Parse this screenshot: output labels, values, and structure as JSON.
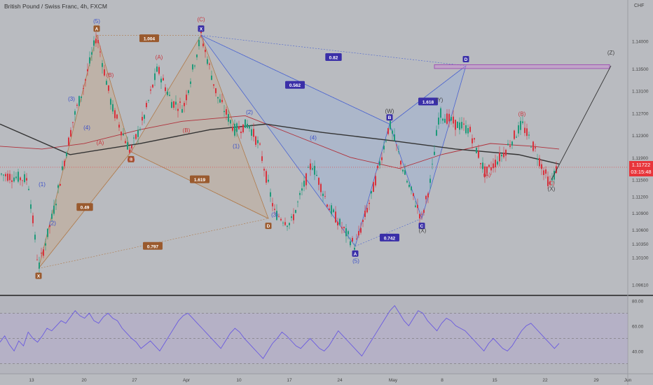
{
  "header": {
    "title": "British Pound / Swiss Franc, 4h, FXCM",
    "currency": "CHF"
  },
  "last_price": {
    "value": "1.11722",
    "countdown": "03:15:48"
  },
  "chart_data": [
    {
      "type": "candlestick",
      "title": "British Pound / Swiss Franc, 4h, FXCM",
      "ylim": [
        1.0944,
        1.1452
      ],
      "y_ticks": [
        "1.14000",
        "1.13500",
        "1.13100",
        "1.12700",
        "1.12300",
        "1.11900",
        "1.11500",
        "1.11200",
        "1.10900",
        "1.10600",
        "1.10350",
        "1.10100",
        "1.09610"
      ],
      "x_ticks": [
        "13",
        "20",
        "27",
        "Apr",
        "10",
        "17",
        "24",
        "May",
        "8",
        "15",
        "22",
        "29",
        "Jun"
      ],
      "price_path": [
        {
          "x": 0,
          "y": 1.116
        },
        {
          "x": 40,
          "y": 1.115
        },
        {
          "x": 55,
          "y": 1.099
        },
        {
          "x": 75,
          "y": 1.1085
        },
        {
          "x": 105,
          "y": 1.126
        },
        {
          "x": 120,
          "y": 1.132
        },
        {
          "x": 138,
          "y": 1.141
        },
        {
          "x": 160,
          "y": 1.128
        },
        {
          "x": 186,
          "y": 1.12
        },
        {
          "x": 205,
          "y": 1.126
        },
        {
          "x": 225,
          "y": 1.135
        },
        {
          "x": 245,
          "y": 1.129
        },
        {
          "x": 262,
          "y": 1.128
        },
        {
          "x": 287,
          "y": 1.141
        },
        {
          "x": 310,
          "y": 1.13
        },
        {
          "x": 335,
          "y": 1.124
        },
        {
          "x": 355,
          "y": 1.125
        },
        {
          "x": 370,
          "y": 1.121
        },
        {
          "x": 392,
          "y": 1.109
        },
        {
          "x": 415,
          "y": 1.107
        },
        {
          "x": 445,
          "y": 1.118
        },
        {
          "x": 470,
          "y": 1.11
        },
        {
          "x": 490,
          "y": 1.106
        },
        {
          "x": 507,
          "y": 1.103
        },
        {
          "x": 530,
          "y": 1.112
        },
        {
          "x": 556,
          "y": 1.125
        },
        {
          "x": 580,
          "y": 1.115
        },
        {
          "x": 602,
          "y": 1.108
        },
        {
          "x": 615,
          "y": 1.115
        },
        {
          "x": 627,
          "y": 1.127
        },
        {
          "x": 650,
          "y": 1.125
        },
        {
          "x": 670,
          "y": 1.124
        },
        {
          "x": 693,
          "y": 1.116
        },
        {
          "x": 720,
          "y": 1.12
        },
        {
          "x": 745,
          "y": 1.125
        },
        {
          "x": 765,
          "y": 1.12
        },
        {
          "x": 785,
          "y": 1.114
        },
        {
          "x": 795,
          "y": 1.1172
        }
      ],
      "ma_slow": [
        {
          "x": 0,
          "y": 1.125
        },
        {
          "x": 100,
          "y": 1.1195
        },
        {
          "x": 200,
          "y": 1.1215
        },
        {
          "x": 300,
          "y": 1.124
        },
        {
          "x": 380,
          "y": 1.125
        },
        {
          "x": 460,
          "y": 1.1235
        },
        {
          "x": 560,
          "y": 1.122
        },
        {
          "x": 650,
          "y": 1.1205
        },
        {
          "x": 740,
          "y": 1.1195
        },
        {
          "x": 798,
          "y": 1.1178
        }
      ],
      "ma_fast": [
        {
          "x": 0,
          "y": 1.121
        },
        {
          "x": 60,
          "y": 1.1205
        },
        {
          "x": 120,
          "y": 1.1215
        },
        {
          "x": 200,
          "y": 1.124
        },
        {
          "x": 260,
          "y": 1.1255
        },
        {
          "x": 350,
          "y": 1.1265
        },
        {
          "x": 420,
          "y": 1.123
        },
        {
          "x": 500,
          "y": 1.119
        },
        {
          "x": 570,
          "y": 1.117
        },
        {
          "x": 630,
          "y": 1.1195
        },
        {
          "x": 700,
          "y": 1.1215
        },
        {
          "x": 760,
          "y": 1.121
        },
        {
          "x": 798,
          "y": 1.1205
        }
      ],
      "harmonic_pattern_1": {
        "points": [
          {
            "label": "X",
            "x": 55,
            "y": 1.099
          },
          {
            "label": "A",
            "x": 138,
            "y": 1.141
          },
          {
            "label": "B",
            "x": 187,
            "y": 1.12
          },
          {
            "label": "C",
            "x": 287,
            "y": 1.141
          },
          {
            "label": "D",
            "x": 383,
            "y": 1.108
          }
        ],
        "ratios": [
          {
            "label": "1.004",
            "x": 213,
            "y": 1.1404
          },
          {
            "label": "0.49",
            "x": 121,
            "y": 1.11
          },
          {
            "label": "1.619",
            "x": 285,
            "y": 1.115
          },
          {
            "label": "0.797",
            "x": 218,
            "y": 1.103
          }
        ]
      },
      "harmonic_pattern_2": {
        "points": [
          {
            "label": "X",
            "x": 287,
            "y": 1.141
          },
          {
            "label": "A",
            "x": 507,
            "y": 1.103
          },
          {
            "label": "B",
            "x": 556,
            "y": 1.125
          },
          {
            "label": "C",
            "x": 602,
            "y": 1.108
          },
          {
            "label": "D",
            "x": 665,
            "y": 1.1355
          }
        ],
        "ratios": [
          {
            "label": "0.82",
            "x": 476,
            "y": 1.137
          },
          {
            "label": "0.562",
            "x": 421,
            "y": 1.132
          },
          {
            "label": "1.618",
            "x": 611,
            "y": 1.129
          },
          {
            "label": "0.742",
            "x": 556,
            "y": 1.1045
          }
        ]
      },
      "wave_labels": [
        {
          "label": "(5)",
          "x": 138,
          "y": 1.1432,
          "color": "#3a4fc8"
        },
        {
          "label": "(3)",
          "x": 102,
          "y": 1.1292,
          "color": "#3a4fc8"
        },
        {
          "label": "(4)",
          "x": 124,
          "y": 1.124,
          "color": "#3a4fc8"
        },
        {
          "label": "(1)",
          "x": 60,
          "y": 1.1138,
          "color": "#3a4fc8"
        },
        {
          "label": "(2)",
          "x": 75,
          "y": 1.1068,
          "color": "#3a4fc8"
        },
        {
          "label": "(B)",
          "x": 157,
          "y": 1.1335,
          "color": "#c8343c"
        },
        {
          "label": "(A)",
          "x": 143,
          "y": 1.1213,
          "color": "#c8343c"
        },
        {
          "label": "(C)",
          "x": 187,
          "y": 1.1183,
          "color": "#c8343c"
        },
        {
          "label": "(A)",
          "x": 227,
          "y": 1.1367,
          "color": "#c8343c"
        },
        {
          "label": "(B)",
          "x": 266,
          "y": 1.1235,
          "color": "#c8343c"
        },
        {
          "label": "(C)",
          "x": 287,
          "y": 1.1435,
          "color": "#c8343c"
        },
        {
          "label": "(2)",
          "x": 356,
          "y": 1.1268,
          "color": "#3a4fc8"
        },
        {
          "label": "(1)",
          "x": 337,
          "y": 1.1207,
          "color": "#3a4fc8"
        },
        {
          "label": "(4)",
          "x": 447,
          "y": 1.1222,
          "color": "#3a4fc8"
        },
        {
          "label": "(3)",
          "x": 392,
          "y": 1.1083,
          "color": "#3a4fc8"
        },
        {
          "label": "(5)",
          "x": 508,
          "y": 1.1,
          "color": "#3a4fc8"
        },
        {
          "label": "(W)",
          "x": 556,
          "y": 1.127,
          "color": "#444444"
        },
        {
          "label": "(X)",
          "x": 603,
          "y": 1.1055,
          "color": "#444444"
        },
        {
          "label": "(Y)",
          "x": 627,
          "y": 1.129,
          "color": "#444444"
        },
        {
          "label": "(B)",
          "x": 745,
          "y": 1.1265,
          "color": "#c8343c"
        },
        {
          "label": "(A)",
          "x": 695,
          "y": 1.1155,
          "color": "#c8343c"
        },
        {
          "label": "(C)",
          "x": 786,
          "y": 1.114,
          "color": "#c8343c"
        },
        {
          "label": "(X)",
          "x": 787,
          "y": 1.113,
          "color": "#444444"
        },
        {
          "label": "(Z)",
          "x": 872,
          "y": 1.1375,
          "color": "#444444"
        }
      ],
      "target_zone": {
        "x_start": 620,
        "x_end": 870,
        "y_low": 1.135,
        "y_high": 1.1357
      },
      "projection": [
        {
          "x": 787,
          "y": 1.115
        },
        {
          "x": 872,
          "y": 1.1355
        }
      ],
      "last_price_line": 1.11722
    },
    {
      "type": "line",
      "title": "",
      "ylim": [
        23,
        83
      ],
      "y_ticks": [
        "80.00",
        "60.00",
        "40.00"
      ],
      "levels": [
        70,
        50,
        30
      ],
      "values": [
        47,
        52,
        45,
        40,
        48,
        44,
        55,
        50,
        47,
        52,
        58,
        56,
        60,
        64,
        62,
        67,
        72,
        68,
        66,
        70,
        64,
        62,
        67,
        70,
        66,
        64,
        58,
        54,
        50,
        47,
        42,
        45,
        48,
        44,
        40,
        46,
        52,
        58,
        64,
        68,
        70,
        66,
        62,
        58,
        54,
        50,
        46,
        42,
        48,
        54,
        58,
        55,
        50,
        46,
        42,
        38,
        34,
        40,
        46,
        50,
        55,
        52,
        48,
        44,
        42,
        46,
        50,
        46,
        42,
        40,
        44,
        50,
        56,
        52,
        48,
        44,
        40,
        36,
        42,
        48,
        54,
        60,
        66,
        72,
        76,
        70,
        64,
        60,
        66,
        72,
        70,
        64,
        60,
        56,
        62,
        66,
        64,
        60,
        58,
        56,
        52,
        48,
        44,
        40,
        46,
        50,
        46,
        42,
        40,
        44,
        50,
        56,
        60,
        62,
        58,
        54,
        50,
        46,
        42,
        46
      ]
    }
  ]
}
